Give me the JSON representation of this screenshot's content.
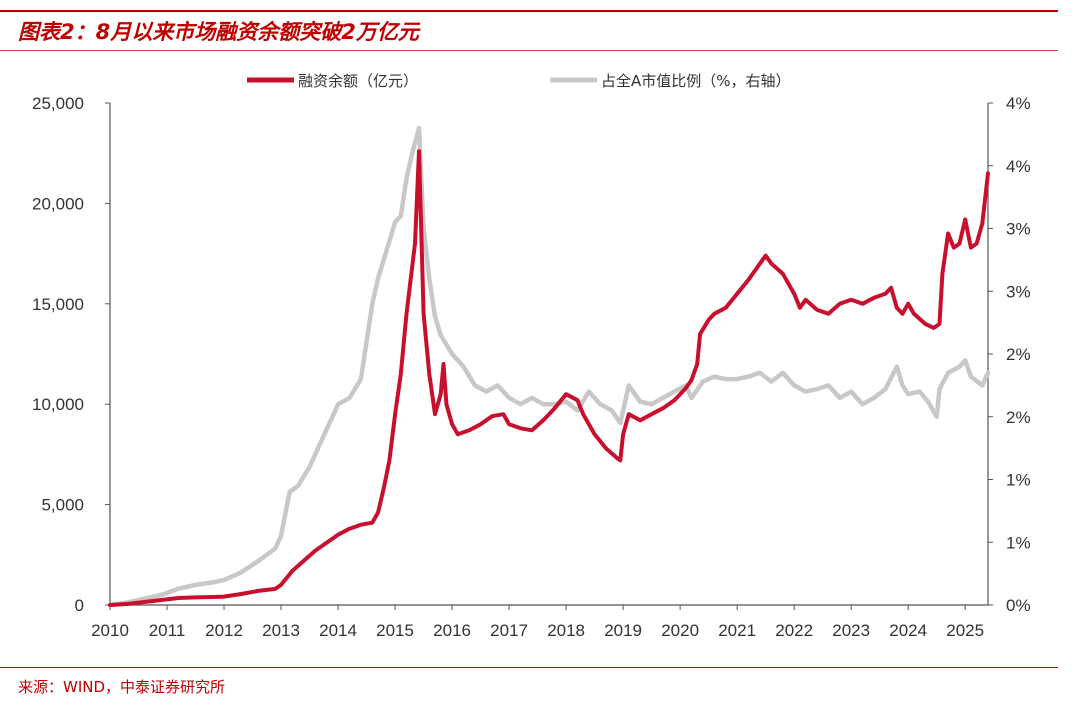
{
  "header": {
    "title": "图表2：8月以来市场融资余额突破2万亿元"
  },
  "footer": {
    "source": "来源：WIND，中泰证券研究所"
  },
  "colors": {
    "accent": "#c00000",
    "margin_series": "#c8102e",
    "ratio_series": "#c8c8c8"
  },
  "chart_data": {
    "type": "line",
    "legend": {
      "position": "top"
    },
    "x_ticks": [
      "2010",
      "2011",
      "2012",
      "2013",
      "2014",
      "2015",
      "2016",
      "2017",
      "2018",
      "2019",
      "2020",
      "2021",
      "2022",
      "2023",
      "2024",
      "2025"
    ],
    "x_range": [
      2010.0,
      2025.4
    ],
    "y_left": {
      "ticks": [
        "0",
        "5,000",
        "10,000",
        "15,000",
        "20,000",
        "25,000"
      ],
      "range": [
        0,
        25000
      ]
    },
    "y_right": {
      "ticks": [
        "0%",
        "1%",
        "1%",
        "2%",
        "2%",
        "3%",
        "3%",
        "4%",
        "4%"
      ],
      "range": [
        0,
        4
      ]
    },
    "series": [
      {
        "name": "融资余额（亿元）",
        "axis": "left",
        "points": [
          [
            2010.0,
            0
          ],
          [
            2010.3,
            50
          ],
          [
            2010.6,
            150
          ],
          [
            2010.9,
            250
          ],
          [
            2011.2,
            350
          ],
          [
            2011.5,
            380
          ],
          [
            2011.8,
            400
          ],
          [
            2012.0,
            420
          ],
          [
            2012.3,
            550
          ],
          [
            2012.6,
            700
          ],
          [
            2012.9,
            800
          ],
          [
            2013.0,
            1000
          ],
          [
            2013.2,
            1700
          ],
          [
            2013.4,
            2200
          ],
          [
            2013.6,
            2700
          ],
          [
            2013.8,
            3100
          ],
          [
            2014.0,
            3500
          ],
          [
            2014.2,
            3800
          ],
          [
            2014.4,
            4000
          ],
          [
            2014.6,
            4100
          ],
          [
            2014.7,
            4600
          ],
          [
            2014.8,
            5800
          ],
          [
            2014.9,
            7200
          ],
          [
            2015.0,
            9500
          ],
          [
            2015.1,
            11500
          ],
          [
            2015.2,
            14500
          ],
          [
            2015.35,
            18000
          ],
          [
            2015.42,
            22600
          ],
          [
            2015.5,
            14500
          ],
          [
            2015.6,
            11500
          ],
          [
            2015.7,
            9500
          ],
          [
            2015.8,
            10500
          ],
          [
            2015.85,
            12000
          ],
          [
            2015.9,
            10000
          ],
          [
            2016.0,
            9000
          ],
          [
            2016.1,
            8500
          ],
          [
            2016.3,
            8700
          ],
          [
            2016.5,
            9000
          ],
          [
            2016.7,
            9400
          ],
          [
            2016.9,
            9500
          ],
          [
            2017.0,
            9000
          ],
          [
            2017.2,
            8800
          ],
          [
            2017.4,
            8700
          ],
          [
            2017.6,
            9200
          ],
          [
            2017.8,
            9800
          ],
          [
            2018.0,
            10500
          ],
          [
            2018.2,
            10200
          ],
          [
            2018.3,
            9500
          ],
          [
            2018.5,
            8500
          ],
          [
            2018.7,
            7800
          ],
          [
            2018.9,
            7300
          ],
          [
            2018.95,
            7200
          ],
          [
            2019.0,
            8500
          ],
          [
            2019.1,
            9500
          ],
          [
            2019.3,
            9200
          ],
          [
            2019.5,
            9500
          ],
          [
            2019.7,
            9800
          ],
          [
            2019.9,
            10200
          ],
          [
            2020.0,
            10500
          ],
          [
            2020.1,
            10800
          ],
          [
            2020.2,
            11200
          ],
          [
            2020.3,
            12000
          ],
          [
            2020.35,
            13500
          ],
          [
            2020.5,
            14200
          ],
          [
            2020.6,
            14500
          ],
          [
            2020.8,
            14800
          ],
          [
            2021.0,
            15500
          ],
          [
            2021.2,
            16200
          ],
          [
            2021.4,
            17000
          ],
          [
            2021.5,
            17400
          ],
          [
            2021.6,
            17000
          ],
          [
            2021.8,
            16500
          ],
          [
            2022.0,
            15500
          ],
          [
            2022.1,
            14800
          ],
          [
            2022.2,
            15200
          ],
          [
            2022.4,
            14700
          ],
          [
            2022.6,
            14500
          ],
          [
            2022.8,
            15000
          ],
          [
            2023.0,
            15200
          ],
          [
            2023.2,
            15000
          ],
          [
            2023.4,
            15300
          ],
          [
            2023.6,
            15500
          ],
          [
            2023.7,
            15800
          ],
          [
            2023.8,
            14800
          ],
          [
            2023.9,
            14500
          ],
          [
            2024.0,
            15000
          ],
          [
            2024.1,
            14500
          ],
          [
            2024.3,
            14000
          ],
          [
            2024.45,
            13800
          ],
          [
            2024.55,
            14000
          ],
          [
            2024.6,
            16500
          ],
          [
            2024.7,
            18500
          ],
          [
            2024.8,
            17800
          ],
          [
            2024.9,
            18000
          ],
          [
            2025.0,
            19200
          ],
          [
            2025.1,
            17800
          ],
          [
            2025.2,
            18000
          ],
          [
            2025.3,
            19000
          ],
          [
            2025.4,
            21500
          ]
        ]
      },
      {
        "name": "占全A市值比例（%，右轴）",
        "axis": "right",
        "points": [
          [
            2010.0,
            0
          ],
          [
            2010.3,
            0.02
          ],
          [
            2010.6,
            0.05
          ],
          [
            2010.9,
            0.08
          ],
          [
            2011.2,
            0.13
          ],
          [
            2011.5,
            0.16
          ],
          [
            2011.8,
            0.18
          ],
          [
            2012.0,
            0.2
          ],
          [
            2012.3,
            0.26
          ],
          [
            2012.6,
            0.35
          ],
          [
            2012.9,
            0.45
          ],
          [
            2013.0,
            0.55
          ],
          [
            2013.15,
            0.9
          ],
          [
            2013.3,
            0.95
          ],
          [
            2013.5,
            1.1
          ],
          [
            2013.7,
            1.3
          ],
          [
            2013.9,
            1.5
          ],
          [
            2014.0,
            1.6
          ],
          [
            2014.2,
            1.65
          ],
          [
            2014.4,
            1.8
          ],
          [
            2014.5,
            2.1
          ],
          [
            2014.6,
            2.4
          ],
          [
            2014.7,
            2.6
          ],
          [
            2014.8,
            2.75
          ],
          [
            2014.9,
            2.9
          ],
          [
            2015.0,
            3.05
          ],
          [
            2015.1,
            3.1
          ],
          [
            2015.2,
            3.4
          ],
          [
            2015.3,
            3.6
          ],
          [
            2015.42,
            3.8
          ],
          [
            2015.5,
            3.0
          ],
          [
            2015.6,
            2.6
          ],
          [
            2015.7,
            2.3
          ],
          [
            2015.8,
            2.15
          ],
          [
            2016.0,
            2.0
          ],
          [
            2016.2,
            1.9
          ],
          [
            2016.4,
            1.75
          ],
          [
            2016.6,
            1.7
          ],
          [
            2016.8,
            1.75
          ],
          [
            2017.0,
            1.65
          ],
          [
            2017.2,
            1.6
          ],
          [
            2017.4,
            1.65
          ],
          [
            2017.6,
            1.6
          ],
          [
            2017.8,
            1.6
          ],
          [
            2018.0,
            1.62
          ],
          [
            2018.2,
            1.55
          ],
          [
            2018.4,
            1.7
          ],
          [
            2018.6,
            1.6
          ],
          [
            2018.8,
            1.55
          ],
          [
            2018.95,
            1.45
          ],
          [
            2019.1,
            1.75
          ],
          [
            2019.3,
            1.62
          ],
          [
            2019.5,
            1.6
          ],
          [
            2019.7,
            1.65
          ],
          [
            2019.9,
            1.7
          ],
          [
            2020.1,
            1.75
          ],
          [
            2020.2,
            1.65
          ],
          [
            2020.4,
            1.78
          ],
          [
            2020.6,
            1.82
          ],
          [
            2020.8,
            1.8
          ],
          [
            2021.0,
            1.8
          ],
          [
            2021.2,
            1.82
          ],
          [
            2021.4,
            1.85
          ],
          [
            2021.6,
            1.78
          ],
          [
            2021.8,
            1.85
          ],
          [
            2022.0,
            1.75
          ],
          [
            2022.2,
            1.7
          ],
          [
            2022.4,
            1.72
          ],
          [
            2022.6,
            1.75
          ],
          [
            2022.8,
            1.65
          ],
          [
            2023.0,
            1.7
          ],
          [
            2023.2,
            1.6
          ],
          [
            2023.4,
            1.65
          ],
          [
            2023.6,
            1.72
          ],
          [
            2023.8,
            1.9
          ],
          [
            2023.9,
            1.75
          ],
          [
            2024.0,
            1.68
          ],
          [
            2024.2,
            1.7
          ],
          [
            2024.35,
            1.62
          ],
          [
            2024.5,
            1.5
          ],
          [
            2024.55,
            1.72
          ],
          [
            2024.7,
            1.85
          ],
          [
            2024.9,
            1.9
          ],
          [
            2025.0,
            1.95
          ],
          [
            2025.1,
            1.82
          ],
          [
            2025.3,
            1.75
          ],
          [
            2025.4,
            1.85
          ]
        ]
      }
    ]
  }
}
